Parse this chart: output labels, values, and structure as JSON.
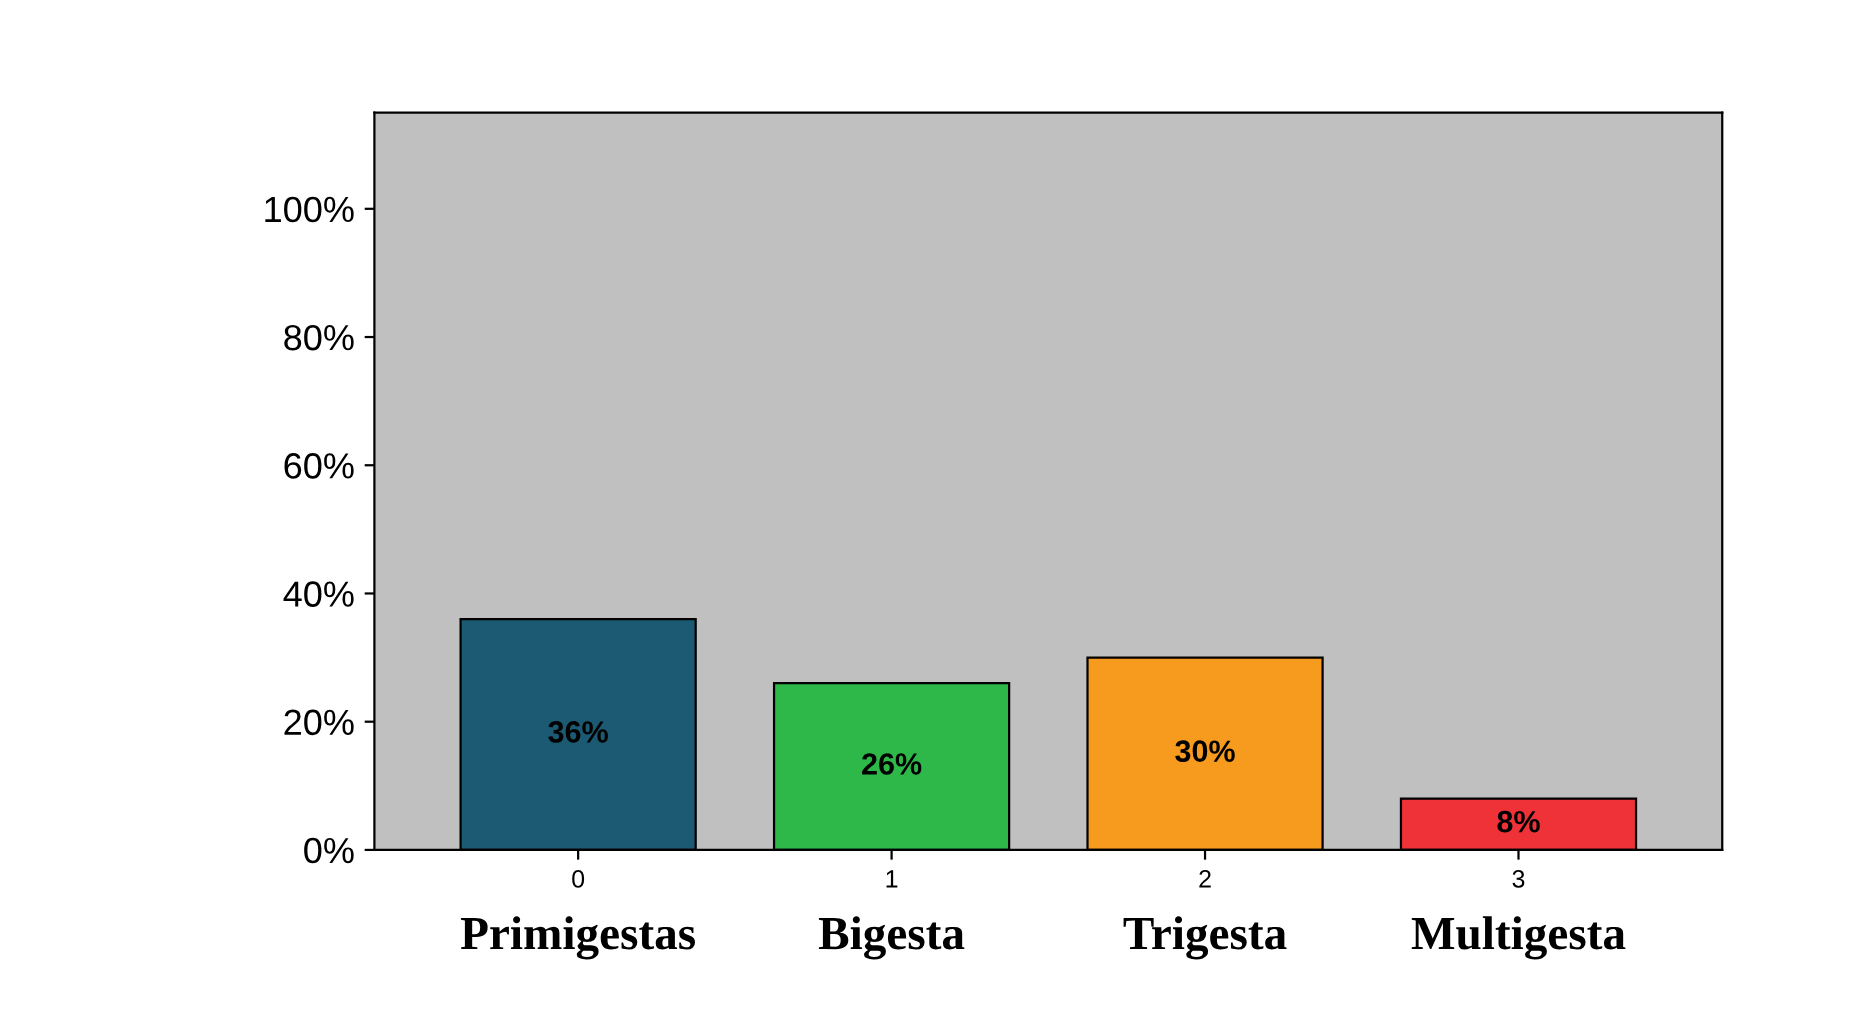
{
  "chart_data": {
    "type": "bar",
    "x": [
      0,
      1,
      2,
      3
    ],
    "values": [
      36,
      26,
      30,
      8
    ],
    "colors": [
      "#1c5a73",
      "#2eb84a",
      "#f79b1e",
      "#ee3238"
    ],
    "value_labels": [
      "36%",
      "26%",
      "30%",
      "8%"
    ],
    "xlim": [
      -0.65,
      3.65
    ],
    "xticks": [
      0,
      1,
      2,
      3
    ],
    "ylim": [
      0,
      115
    ],
    "yticks": [
      {
        "value": 0,
        "label": "0%"
      },
      {
        "value": 20,
        "label": "20%"
      },
      {
        "value": 40,
        "label": "40%"
      },
      {
        "value": 60,
        "label": "60%"
      },
      {
        "value": 80,
        "label": "80%"
      },
      {
        "value": 100,
        "label": "100%"
      }
    ],
    "annotations": [
      "Primigestas",
      "Bigesta",
      "Trigesta",
      "Multigesta"
    ],
    "grid": false,
    "legend": false
  }
}
